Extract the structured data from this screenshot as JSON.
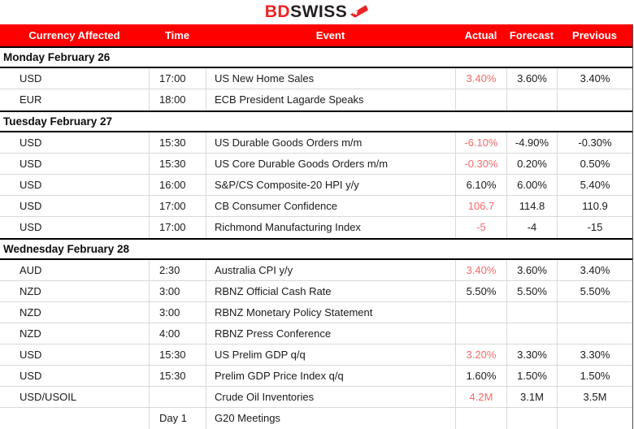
{
  "logo": {
    "bd": "BD",
    "swiss": "SWISS",
    "arrow_icon": "swiss-arrow-icon"
  },
  "colors": {
    "header_bg": "#fe0000",
    "header_text": "#ffffff",
    "logo_red": "#ed2224",
    "value_red": "#fa6a6a",
    "text": "#1a1a1a",
    "border_light": "#d9d9d9",
    "border_dark": "#000000"
  },
  "table": {
    "columns": [
      "Currency Affected",
      "Time",
      "Event",
      "Actual",
      "Forecast",
      "Previous"
    ],
    "sections": [
      {
        "date": "Monday February 26",
        "rows": [
          {
            "currency": "USD",
            "time": "17:00",
            "event": "US New Home Sales",
            "actual": "3.40%",
            "actual_red": true,
            "forecast": "3.60%",
            "previous": "3.40%"
          },
          {
            "currency": "EUR",
            "time": "18:00",
            "event": "ECB President Lagarde Speaks",
            "actual": "",
            "actual_red": false,
            "forecast": "",
            "previous": ""
          }
        ]
      },
      {
        "date": "Tuesday February 27",
        "rows": [
          {
            "currency": "USD",
            "time": "15:30",
            "event": "US Durable Goods Orders m/m",
            "actual": "-6.10%",
            "actual_red": true,
            "forecast": "-4.90%",
            "previous": "-0.30%"
          },
          {
            "currency": "USD",
            "time": "15:30",
            "event": "US Core Durable Goods Orders m/m",
            "actual": "-0.30%",
            "actual_red": true,
            "forecast": "0.20%",
            "previous": "0.50%"
          },
          {
            "currency": "USD",
            "time": "16:00",
            "event": "S&P/CS Composite-20 HPI y/y",
            "actual": "6.10%",
            "actual_red": false,
            "forecast": "6.00%",
            "previous": "5.40%"
          },
          {
            "currency": "USD",
            "time": "17:00",
            "event": "CB Consumer Confidence",
            "actual": "106.7",
            "actual_red": true,
            "forecast": "114.8",
            "previous": "110.9"
          },
          {
            "currency": "USD",
            "time": "17:00",
            "event": "Richmond Manufacturing Index",
            "actual": "-5",
            "actual_red": true,
            "forecast": "-4",
            "previous": "-15"
          }
        ]
      },
      {
        "date": "Wednesday February 28",
        "rows": [
          {
            "currency": "AUD",
            "time": "2:30",
            "event": "Australia CPI y/y",
            "actual": "3.40%",
            "actual_red": true,
            "forecast": "3.60%",
            "previous": "3.40%"
          },
          {
            "currency": "NZD",
            "time": "3:00",
            "event": "RBNZ Official Cash Rate",
            "actual": "5.50%",
            "actual_red": false,
            "forecast": "5.50%",
            "previous": "5.50%"
          },
          {
            "currency": "NZD",
            "time": "3:00",
            "event": "RBNZ Monetary Policy Statement",
            "actual": "",
            "actual_red": false,
            "forecast": "",
            "previous": ""
          },
          {
            "currency": "NZD",
            "time": "4:00",
            "event": "RBNZ Press Conference",
            "actual": "",
            "actual_red": false,
            "forecast": "",
            "previous": ""
          },
          {
            "currency": "USD",
            "time": "15:30",
            "event": "US Prelim GDP q/q",
            "actual": "3.20%",
            "actual_red": true,
            "forecast": "3.30%",
            "previous": "3.30%"
          },
          {
            "currency": "USD",
            "time": "15:30",
            "event": "Prelim GDP Price Index q/q",
            "actual": "1.60%",
            "actual_red": false,
            "forecast": "1.50%",
            "previous": "1.50%"
          },
          {
            "currency": "USD/USOIL",
            "time": "",
            "event": "Crude Oil Inventories",
            "actual": "4.2M",
            "actual_red": true,
            "forecast": "3.1M",
            "previous": "3.5M"
          },
          {
            "currency": "",
            "time": "Day 1",
            "event": "G20 Meetings",
            "actual": "",
            "actual_red": false,
            "forecast": "",
            "previous": ""
          }
        ]
      }
    ]
  }
}
